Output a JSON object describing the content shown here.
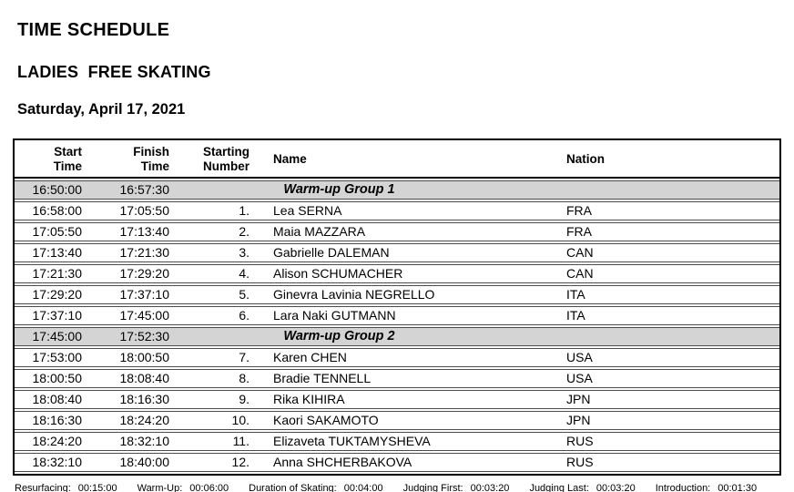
{
  "page": {
    "title": "TIME SCHEDULE",
    "subtitle": "LADIES  FREE SKATING",
    "date": "Saturday, April 17, 2021"
  },
  "table": {
    "columns": [
      {
        "line1": "Start",
        "line2": "Time"
      },
      {
        "line1": "Finish",
        "line2": "Time"
      },
      {
        "line1": "Starting",
        "line2": "Number"
      },
      {
        "line1": "Name",
        "line2": ""
      },
      {
        "line1": "Nation",
        "line2": ""
      }
    ],
    "rows": [
      {
        "type": "group",
        "start": "16:50:00",
        "finish": "16:57:30",
        "label": "Warm-up Group 1"
      },
      {
        "type": "skater",
        "start": "16:58:00",
        "finish": "17:05:50",
        "number": "1.",
        "name": "Lea SERNA",
        "nation": "FRA"
      },
      {
        "type": "skater",
        "start": "17:05:50",
        "finish": "17:13:40",
        "number": "2.",
        "name": "Maia MAZZARA",
        "nation": "FRA"
      },
      {
        "type": "skater",
        "start": "17:13:40",
        "finish": "17:21:30",
        "number": "3.",
        "name": "Gabrielle DALEMAN",
        "nation": "CAN"
      },
      {
        "type": "skater",
        "start": "17:21:30",
        "finish": "17:29:20",
        "number": "4.",
        "name": "Alison SCHUMACHER",
        "nation": "CAN"
      },
      {
        "type": "skater",
        "start": "17:29:20",
        "finish": "17:37:10",
        "number": "5.",
        "name": "Ginevra Lavinia NEGRELLO",
        "nation": "ITA"
      },
      {
        "type": "skater",
        "start": "17:37:10",
        "finish": "17:45:00",
        "number": "6.",
        "name": "Lara Naki GUTMANN",
        "nation": "ITA"
      },
      {
        "type": "group",
        "start": "17:45:00",
        "finish": "17:52:30",
        "label": "Warm-up Group 2"
      },
      {
        "type": "skater",
        "start": "17:53:00",
        "finish": "18:00:50",
        "number": "7.",
        "name": "Karen CHEN",
        "nation": "USA"
      },
      {
        "type": "skater",
        "start": "18:00:50",
        "finish": "18:08:40",
        "number": "8.",
        "name": "Bradie TENNELL",
        "nation": "USA"
      },
      {
        "type": "skater",
        "start": "18:08:40",
        "finish": "18:16:30",
        "number": "9.",
        "name": "Rika KIHIRA",
        "nation": "JPN"
      },
      {
        "type": "skater",
        "start": "18:16:30",
        "finish": "18:24:20",
        "number": "10.",
        "name": "Kaori SAKAMOTO",
        "nation": "JPN"
      },
      {
        "type": "skater",
        "start": "18:24:20",
        "finish": "18:32:10",
        "number": "11.",
        "name": "Elizaveta TUKTAMYSHEVA",
        "nation": "RUS"
      },
      {
        "type": "skater",
        "start": "18:32:10",
        "finish": "18:40:00",
        "number": "12.",
        "name": "Anna SHCHERBAKOVA",
        "nation": "RUS"
      }
    ]
  },
  "footer": {
    "items": [
      {
        "label": "Resurfacing:",
        "value": "00:15:00"
      },
      {
        "label": "Warm-Up:",
        "value": "00:06:00"
      },
      {
        "label": "Duration of Skating:",
        "value": "00:04:00"
      },
      {
        "label": "Judging First:",
        "value": "00:03:20"
      },
      {
        "label": "Judging Last:",
        "value": "00:03:20"
      },
      {
        "label": "Introduction:",
        "value": "00:01:30"
      }
    ]
  },
  "colors": {
    "group_row_bg": "#d4d4d4",
    "table_border": "#000000",
    "row_line": "#4d4d4d"
  }
}
